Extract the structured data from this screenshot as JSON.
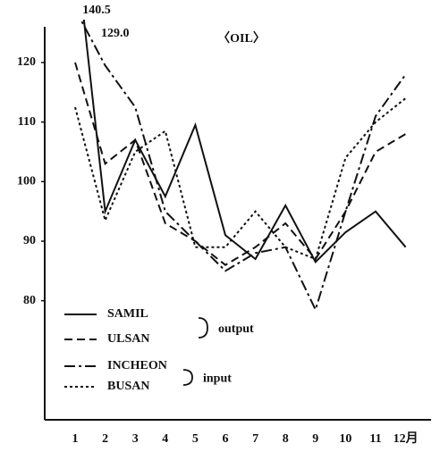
{
  "chart_data": {
    "type": "line",
    "title": "〈OIL〉",
    "categories": [
      "1",
      "2",
      "3",
      "4",
      "5",
      "6",
      "7",
      "8",
      "9",
      "10",
      "11",
      "12月"
    ],
    "series": [
      {
        "name": "SAMIL",
        "color": "#111111",
        "dash": "solid",
        "values": [
          140.5,
          95,
          107,
          97.5,
          109.5,
          91,
          87,
          96,
          86.5,
          91.5,
          95,
          89
        ]
      },
      {
        "name": "ULSAN",
        "color": "#111111",
        "dash": "dashed",
        "values": [
          120,
          103,
          107,
          93,
          90,
          86,
          89,
          93,
          87,
          95,
          105,
          108
        ]
      },
      {
        "name": "INCHEON",
        "color": "#111111",
        "dash": "dashdot",
        "values": [
          129.0,
          119.5,
          112.5,
          95,
          90,
          85,
          88,
          89,
          78.5,
          95,
          111,
          118
        ]
      },
      {
        "name": "BUSAN",
        "color": "#111111",
        "dash": "dotted",
        "values": [
          112.5,
          93.5,
          105,
          108.5,
          89,
          89,
          95,
          89,
          87,
          104,
          110,
          114
        ]
      }
    ],
    "legend_groups": [
      "output",
      "input"
    ],
    "annotations": [
      "140.5",
      "129.0"
    ],
    "ylim": [
      60,
      126
    ],
    "yticks": [
      80,
      90,
      100,
      110,
      120
    ]
  }
}
